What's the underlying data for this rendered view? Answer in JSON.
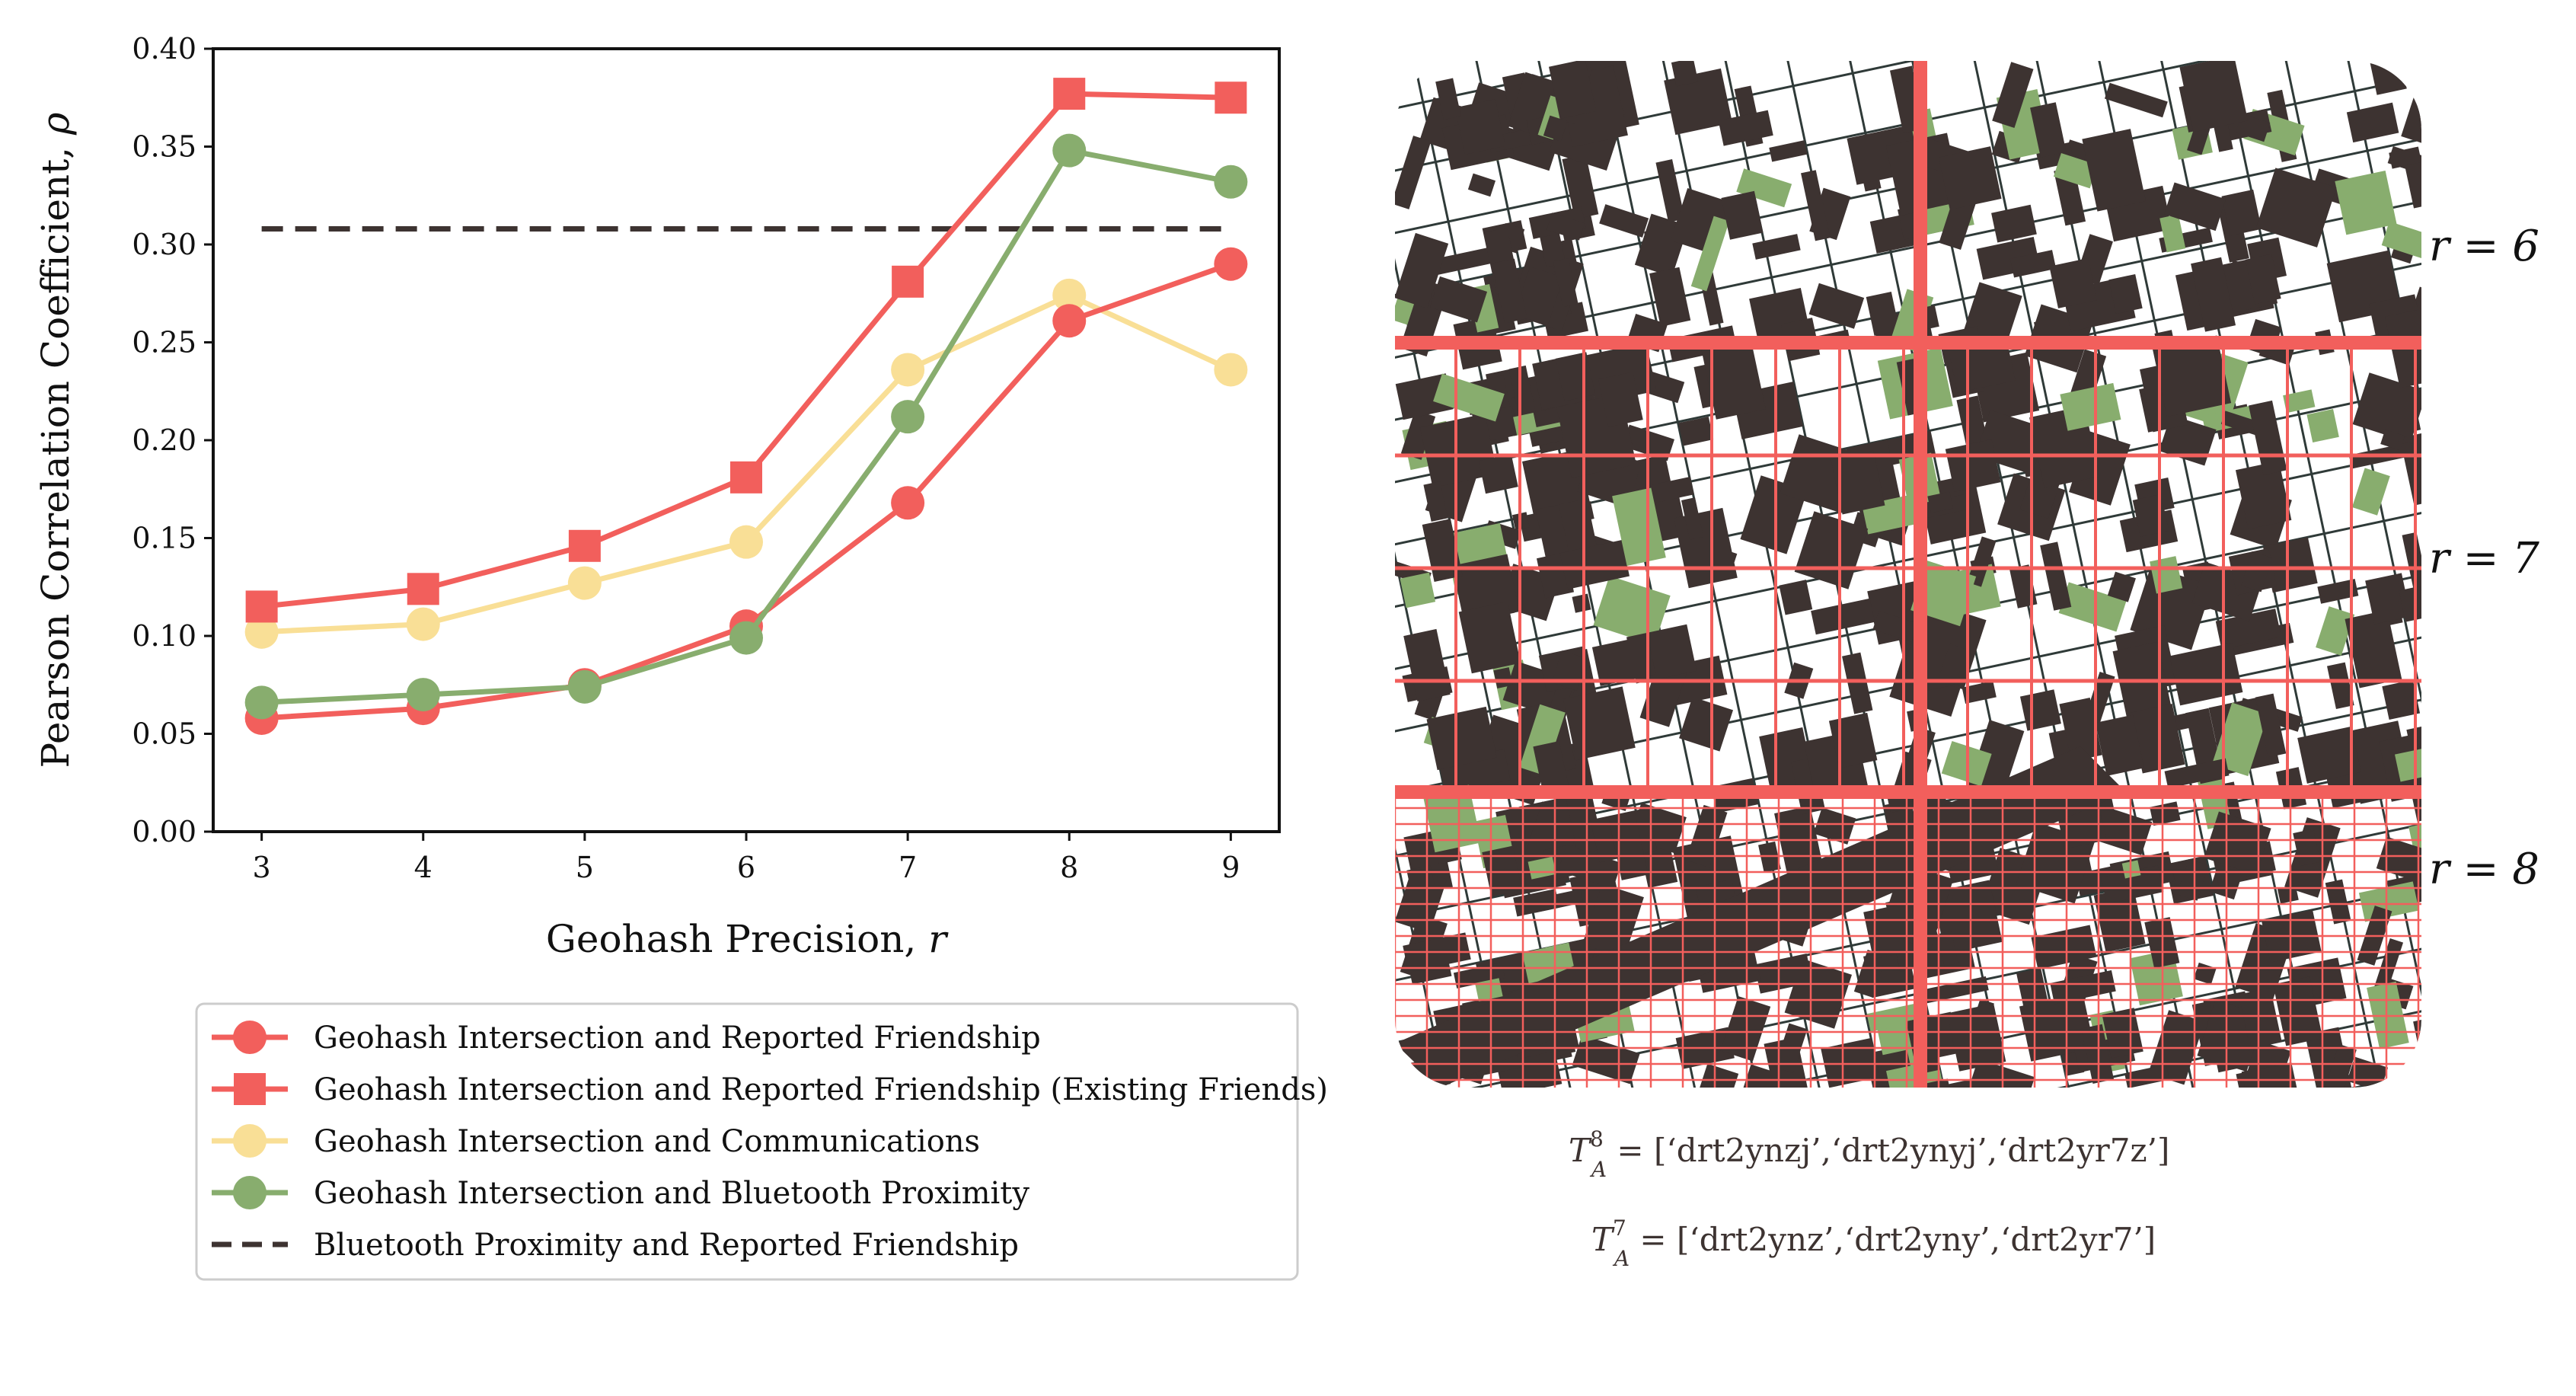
{
  "colors": {
    "red": "#f25f5c",
    "yellow": "#f9df96",
    "green": "#88ad6e",
    "dark": "#3d3331",
    "grid": "#f25f5c",
    "map_bg": "#ffffff",
    "building": "#3d3331",
    "park": "#88ad6e"
  },
  "chart_data": {
    "type": "line",
    "xlabel": "Geohash Precision, r",
    "ylabel": "Pearson Correlation Coefficient, ρ",
    "x": [
      3,
      4,
      5,
      6,
      7,
      8,
      9
    ],
    "xlim": [
      2.7,
      9.3
    ],
    "ylim": [
      0.0,
      0.4
    ],
    "yticks": [
      "0.00",
      "0.05",
      "0.10",
      "0.15",
      "0.20",
      "0.25",
      "0.30",
      "0.35",
      "0.40"
    ],
    "xticks": [
      "3",
      "4",
      "5",
      "6",
      "7",
      "8",
      "9"
    ],
    "grid": false,
    "legend_position": "bottom",
    "series": [
      {
        "name": "Geohash Intersection and Reported Friendship",
        "marker": "circle",
        "color": "#f25f5c",
        "values": [
          0.058,
          0.063,
          0.075,
          0.105,
          0.168,
          0.261,
          0.29
        ]
      },
      {
        "name": "Geohash Intersection and Reported Friendship (Existing Friends)",
        "marker": "square",
        "color": "#f25f5c",
        "values": [
          0.115,
          0.124,
          0.146,
          0.181,
          0.281,
          0.377,
          0.375
        ]
      },
      {
        "name": "Geohash Intersection and Communications",
        "marker": "circle",
        "color": "#f9df96",
        "values": [
          0.102,
          0.106,
          0.127,
          0.148,
          0.236,
          0.274,
          0.236
        ]
      },
      {
        "name": "Geohash Intersection and Bluetooth Proximity",
        "marker": "circle",
        "color": "#88ad6e",
        "values": [
          0.066,
          0.07,
          0.074,
          0.099,
          0.212,
          0.348,
          0.332
        ]
      },
      {
        "name": "Bluetooth Proximity and Reported Friendship",
        "marker": "dashed",
        "color": "#3d3331",
        "values": [
          0.308,
          0.308,
          0.308,
          0.308,
          0.308,
          0.308,
          0.308
        ]
      }
    ]
  },
  "map": {
    "r_labels": [
      "r = 6",
      "r = 7",
      "r = 8"
    ],
    "tile_sets": [
      {
        "prefix": "T",
        "sub": "A",
        "sup": "8",
        "text": " = [‘drt2ynzj’,‘drt2ynyj’,‘drt2yr7z’]"
      },
      {
        "prefix": "T",
        "sub": "A",
        "sup": "7",
        "text": " = [‘drt2ynz’,‘drt2yny’,‘drt2yr7’]"
      }
    ]
  }
}
